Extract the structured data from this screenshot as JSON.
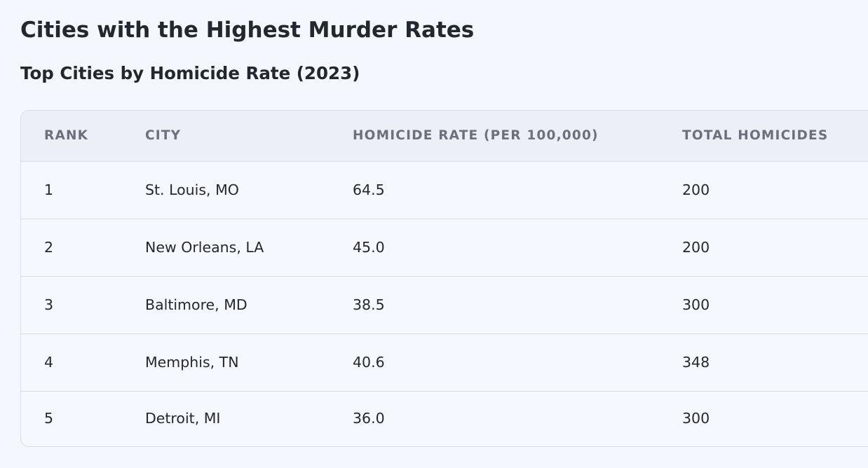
{
  "page": {
    "title": "Cities with the Highest Murder Rates",
    "subtitle": "Top Cities by Homicide Rate (2023)"
  },
  "table": {
    "headers": {
      "rank": "RANK",
      "city": "CITY",
      "rate": "HOMICIDE RATE (PER 100,000)",
      "total": "TOTAL HOMICIDES"
    },
    "rows": [
      {
        "rank": "1",
        "city": "St. Louis, MO",
        "rate": "64.5",
        "total": "200"
      },
      {
        "rank": "2",
        "city": "New Orleans, LA",
        "rate": "45.0",
        "total": "200"
      },
      {
        "rank": "3",
        "city": "Baltimore, MD",
        "rate": "38.5",
        "total": "300"
      },
      {
        "rank": "4",
        "city": "Memphis, TN",
        "rate": "40.6",
        "total": "348"
      },
      {
        "rank": "5",
        "city": "Detroit, MI",
        "rate": "36.0",
        "total": "300"
      }
    ]
  }
}
